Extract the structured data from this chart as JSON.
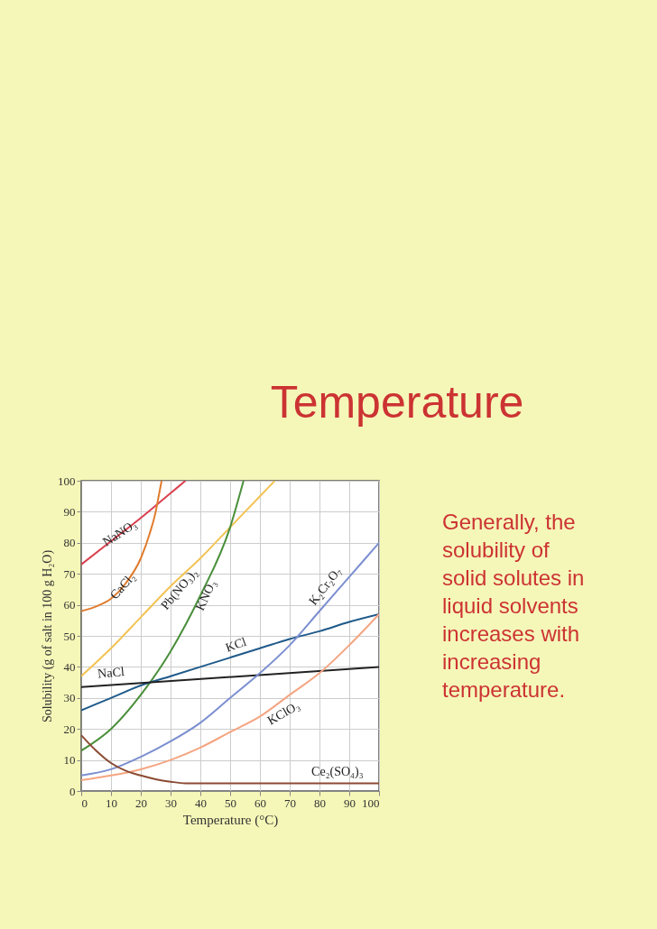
{
  "chart_data": {
    "type": "line",
    "title": "Temperature",
    "xlabel": "Temperature (°C)",
    "ylabel": "Solubility (g of salt in 100 g H₂O)",
    "xlim": [
      0,
      100
    ],
    "xticks": [
      0,
      10,
      20,
      30,
      40,
      50,
      60,
      70,
      80,
      90,
      100
    ],
    "ylim": [
      0,
      100
    ],
    "yticks": [
      0,
      10,
      20,
      30,
      40,
      50,
      60,
      70,
      80,
      90,
      100
    ],
    "grid": true,
    "legend": false,
    "annotations": [
      "Generally, the solubility of solid solutes in liquid solvents increases with increasing temperature."
    ],
    "series": [
      {
        "name": "NaNO₃",
        "color": "#d9414f",
        "x": [
          0,
          10,
          20,
          30,
          35
        ],
        "values": [
          73,
          80.5,
          88,
          96,
          100
        ]
      },
      {
        "name": "CaCl₂",
        "color": "#e07b2c",
        "x": [
          0,
          5,
          10,
          15,
          20,
          23,
          25,
          26,
          27
        ],
        "values": [
          58,
          59.5,
          62,
          67,
          75,
          83,
          90,
          95,
          100
        ]
      },
      {
        "name": "Pb(NO₃)₂",
        "color": "#f2c354",
        "x": [
          0,
          10,
          20,
          30,
          40,
          50,
          60,
          65
        ],
        "values": [
          37,
          46,
          56,
          66,
          75,
          85,
          95,
          100
        ]
      },
      {
        "name": "KNO₃",
        "color": "#4a8f3a",
        "x": [
          0,
          10,
          20,
          30,
          40,
          50,
          54.5
        ],
        "values": [
          13,
          20,
          31,
          45,
          63,
          85,
          100
        ]
      },
      {
        "name": "KCl",
        "color": "#1f5a8a",
        "x": [
          0,
          10,
          20,
          30,
          40,
          50,
          60,
          70,
          80,
          90,
          100
        ],
        "values": [
          26,
          30,
          34,
          37,
          40,
          43,
          46,
          49,
          51.5,
          54.5,
          57
        ]
      },
      {
        "name": "NaCl",
        "color": "#222222",
        "x": [
          0,
          100
        ],
        "values": [
          33.5,
          40
        ]
      },
      {
        "name": "K₂Cr₂O₇",
        "color": "#7b8fd0",
        "x": [
          0,
          10,
          20,
          30,
          40,
          50,
          60,
          70,
          80,
          90,
          100
        ],
        "values": [
          5,
          7,
          11,
          16,
          22,
          30,
          38,
          47,
          58,
          69,
          80
        ]
      },
      {
        "name": "KClO₃",
        "color": "#f4a582",
        "x": [
          0,
          10,
          20,
          30,
          40,
          50,
          60,
          70,
          80,
          90,
          100
        ],
        "values": [
          3.5,
          5,
          7,
          10,
          14,
          19,
          24,
          31,
          38,
          47,
          57
        ]
      },
      {
        "name": "Ce₂(SO₄)₃",
        "color": "#8b4a32",
        "x": [
          0,
          5,
          10,
          15,
          20,
          25,
          30,
          35,
          100
        ],
        "values": [
          18,
          13,
          9,
          6.5,
          5,
          3.8,
          3,
          2.5,
          2.5
        ]
      }
    ]
  }
}
